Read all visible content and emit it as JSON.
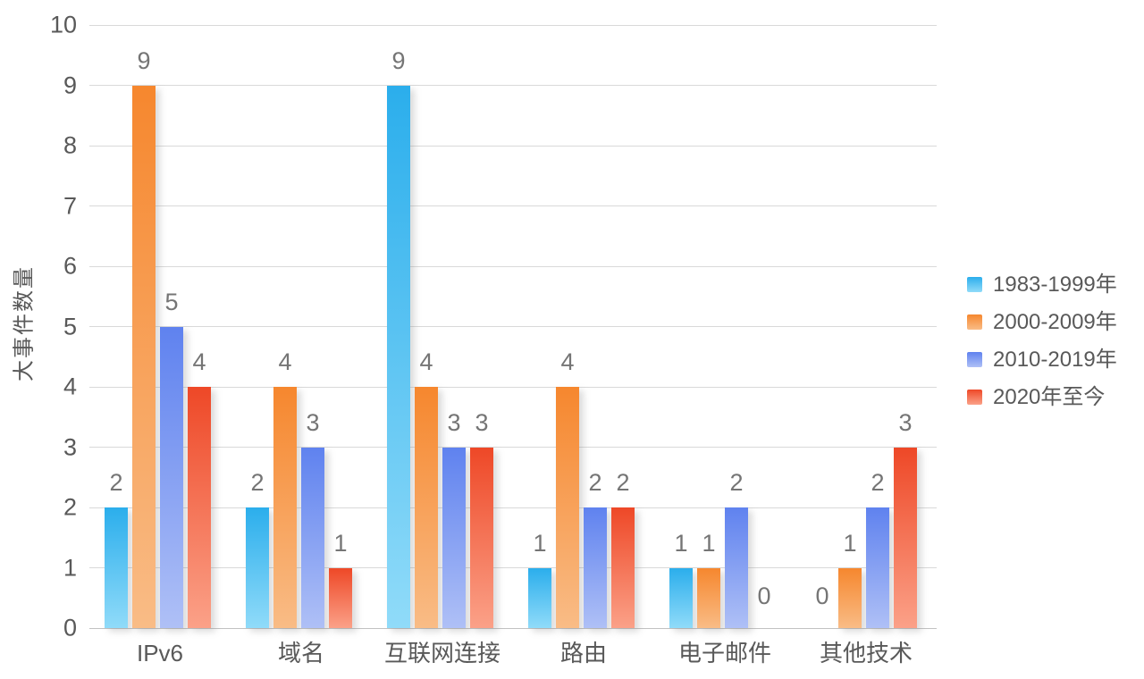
{
  "chart_data": {
    "type": "bar",
    "title": "",
    "ylabel": "大事件数量",
    "xlabel": "",
    "categories": [
      "IPv6",
      "域名",
      "互联网连接",
      "路由",
      "电子邮件",
      "其他技术"
    ],
    "series": [
      {
        "name": "1983-1999年",
        "values": [
          2,
          2,
          9,
          1,
          1,
          0
        ],
        "color_top": "#2BAEEC",
        "color_bottom": "#90DBF9"
      },
      {
        "name": "2000-2009年",
        "values": [
          9,
          4,
          4,
          4,
          1,
          1
        ],
        "color_top": "#F6872E",
        "color_bottom": "#F9BC86"
      },
      {
        "name": "2010-2019年",
        "values": [
          5,
          3,
          3,
          2,
          2,
          2
        ],
        "color_top": "#5F82EF",
        "color_bottom": "#AFC0F6"
      },
      {
        "name": "2020年至今",
        "values": [
          4,
          1,
          3,
          2,
          0,
          3
        ],
        "color_top": "#EE4827",
        "color_bottom": "#FBA188"
      }
    ],
    "ylim": [
      0,
      10
    ],
    "yticks": [
      0,
      1,
      2,
      3,
      4,
      5,
      6,
      7,
      8,
      9,
      10
    ],
    "grid": true,
    "legend_position": "right",
    "data_labels": true
  },
  "colors": {
    "background": "#FFFFFF",
    "gridline": "#D9D9D9",
    "axis_line": "#C2C2C2",
    "tick_label": "#595959",
    "data_label": "#757575"
  }
}
